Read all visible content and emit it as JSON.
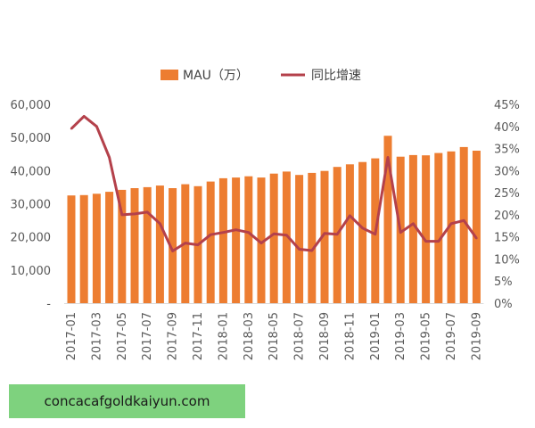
{
  "chart_data": {
    "type": "bar+line",
    "legend": {
      "bar_label": "MAU（万）",
      "line_label": "同比增速",
      "position": "top"
    },
    "categories": [
      "2017-01",
      "2017-02",
      "2017-03",
      "2017-04",
      "2017-05",
      "2017-06",
      "2017-07",
      "2017-08",
      "2017-09",
      "2017-10",
      "2017-11",
      "2017-12",
      "2018-01",
      "2018-02",
      "2018-03",
      "2018-04",
      "2018-05",
      "2018-06",
      "2018-07",
      "2018-08",
      "2018-09",
      "2018-10",
      "2018-11",
      "2018-12",
      "2019-01",
      "2019-02",
      "2019-03",
      "2019-04",
      "2019-05",
      "2019-06",
      "2019-07",
      "2019-08",
      "2019-09"
    ],
    "x_tick_labels": [
      "2017-01",
      "2017-03",
      "2017-05",
      "2017-07",
      "2017-09",
      "2017-11",
      "2018-01",
      "2018-03",
      "2018-05",
      "2018-07",
      "2018-09",
      "2018-11",
      "2019-01",
      "2019-03",
      "2019-05",
      "2019-07",
      "2019-09"
    ],
    "series": [
      {
        "name": "MAU（万）",
        "kind": "bar",
        "axis": "left",
        "color": "#ed7d31",
        "values": [
          32500,
          32600,
          33000,
          33600,
          34200,
          34700,
          35000,
          35500,
          34700,
          35900,
          35300,
          36700,
          37700,
          37900,
          38300,
          37900,
          39100,
          39700,
          38700,
          39300,
          39900,
          41100,
          41900,
          42600,
          43700,
          50500,
          44200,
          44700,
          44600,
          45300,
          45800,
          47100,
          46000
        ]
      },
      {
        "name": "同比增速",
        "kind": "line",
        "axis": "right",
        "color": "#b4414b",
        "values": [
          39.5,
          42.3,
          40.0,
          33.0,
          20.0,
          20.2,
          20.6,
          18.0,
          11.8,
          13.6,
          13.2,
          15.5,
          16.0,
          16.6,
          16.0,
          13.6,
          15.7,
          15.4,
          12.2,
          11.9,
          15.8,
          15.6,
          19.8,
          17.0,
          15.6,
          33.0,
          16.0,
          18.0,
          14.0,
          14.0,
          18.0,
          18.7,
          14.7
        ]
      }
    ],
    "y_left": {
      "ylim": [
        0,
        60000
      ],
      "tick_labels": [
        "-",
        "10,000",
        "20,000",
        "30,000",
        "40,000",
        "50,000",
        "60,000"
      ]
    },
    "y_right": {
      "ylim": [
        0,
        45
      ],
      "tick_labels": [
        "0%",
        "5%",
        "10%",
        "15%",
        "20%",
        "25%",
        "30%",
        "35%",
        "40%",
        "45%"
      ]
    },
    "grid": false
  },
  "watermark": "concacafgoldkaiyun.com"
}
